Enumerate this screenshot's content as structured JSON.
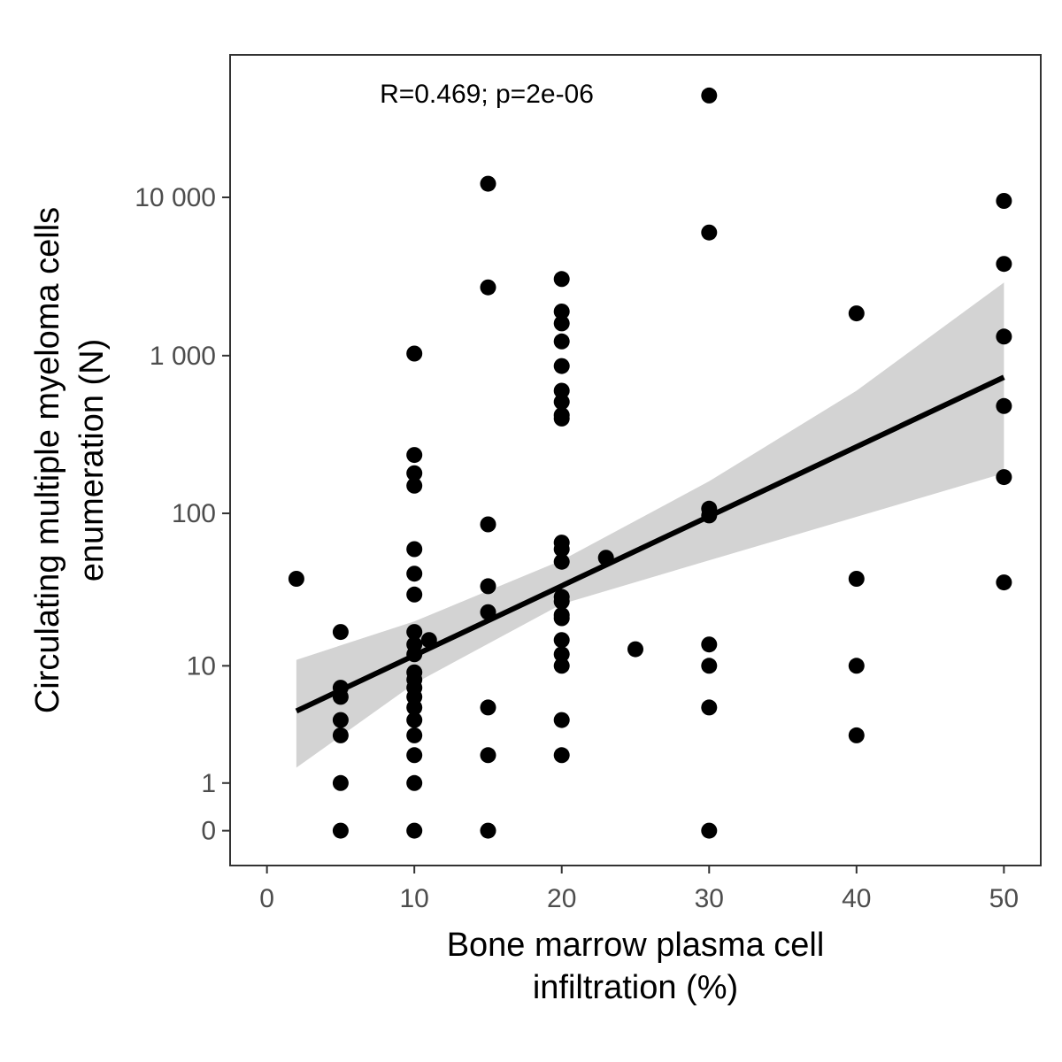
{
  "chart_data": {
    "type": "scatter",
    "title": "",
    "xlabel_lines": [
      "Bone marrow plasma cell",
      "infiltration (%)"
    ],
    "ylabel_lines": [
      "Circulating multiple myeloma cells",
      "enumeration (N)"
    ],
    "annotation": "R=0.469; p=2e-06",
    "x_scale": "linear",
    "y_scale": "pseudo-log (log10(N+1))",
    "xlim": [
      -2.5,
      52.5
    ],
    "ylim_transformed": [
      -0.22,
      4.9
    ],
    "x_ticks": [
      {
        "value": 0,
        "label": "0"
      },
      {
        "value": 10,
        "label": "10"
      },
      {
        "value": 20,
        "label": "20"
      },
      {
        "value": 30,
        "label": "30"
      },
      {
        "value": 40,
        "label": "40"
      },
      {
        "value": 50,
        "label": "50"
      }
    ],
    "y_ticks": [
      {
        "value": 0,
        "label": "0"
      },
      {
        "value": 1,
        "label": "1"
      },
      {
        "value": 10,
        "label": "10"
      },
      {
        "value": 100,
        "label": "100"
      },
      {
        "value": 1000,
        "label": "1 000"
      },
      {
        "value": 10000,
        "label": "10 000"
      }
    ],
    "points": [
      {
        "x": 2,
        "y": 38
      },
      {
        "x": 5,
        "y": 17
      },
      {
        "x": 5,
        "y": 7
      },
      {
        "x": 5,
        "y": 6
      },
      {
        "x": 5,
        "y": 4
      },
      {
        "x": 5,
        "y": 3
      },
      {
        "x": 5,
        "y": 1
      },
      {
        "x": 5,
        "y": 0
      },
      {
        "x": 10,
        "y": 1030
      },
      {
        "x": 10,
        "y": 235
      },
      {
        "x": 10,
        "y": 180
      },
      {
        "x": 10,
        "y": 150
      },
      {
        "x": 10,
        "y": 59
      },
      {
        "x": 10,
        "y": 41
      },
      {
        "x": 10,
        "y": 30
      },
      {
        "x": 10,
        "y": 17
      },
      {
        "x": 10,
        "y": 14
      },
      {
        "x": 10,
        "y": 12
      },
      {
        "x": 10,
        "y": 9
      },
      {
        "x": 10,
        "y": 8
      },
      {
        "x": 10,
        "y": 7
      },
      {
        "x": 10,
        "y": 6
      },
      {
        "x": 10,
        "y": 5
      },
      {
        "x": 10,
        "y": 4
      },
      {
        "x": 10,
        "y": 3
      },
      {
        "x": 10,
        "y": 2
      },
      {
        "x": 10,
        "y": 1
      },
      {
        "x": 10,
        "y": 0
      },
      {
        "x": 11,
        "y": 15
      },
      {
        "x": 15,
        "y": 12200
      },
      {
        "x": 15,
        "y": 2700
      },
      {
        "x": 15,
        "y": 85
      },
      {
        "x": 15,
        "y": 34
      },
      {
        "x": 15,
        "y": 23
      },
      {
        "x": 15,
        "y": 5
      },
      {
        "x": 15,
        "y": 2
      },
      {
        "x": 15,
        "y": 0
      },
      {
        "x": 20,
        "y": 3050
      },
      {
        "x": 20,
        "y": 1900
      },
      {
        "x": 20,
        "y": 1600
      },
      {
        "x": 20,
        "y": 1230
      },
      {
        "x": 20,
        "y": 860
      },
      {
        "x": 20,
        "y": 600
      },
      {
        "x": 20,
        "y": 510
      },
      {
        "x": 20,
        "y": 420
      },
      {
        "x": 20,
        "y": 400
      },
      {
        "x": 20,
        "y": 65
      },
      {
        "x": 20,
        "y": 59
      },
      {
        "x": 20,
        "y": 49
      },
      {
        "x": 20,
        "y": 29
      },
      {
        "x": 20,
        "y": 27
      },
      {
        "x": 20,
        "y": 22
      },
      {
        "x": 20,
        "y": 21
      },
      {
        "x": 20,
        "y": 15
      },
      {
        "x": 20,
        "y": 12
      },
      {
        "x": 20,
        "y": 10
      },
      {
        "x": 20,
        "y": 4
      },
      {
        "x": 20,
        "y": 2
      },
      {
        "x": 23,
        "y": 52
      },
      {
        "x": 25,
        "y": 13
      },
      {
        "x": 30,
        "y": 44000
      },
      {
        "x": 30,
        "y": 6000
      },
      {
        "x": 30,
        "y": 107
      },
      {
        "x": 30,
        "y": 97
      },
      {
        "x": 30,
        "y": 14
      },
      {
        "x": 30,
        "y": 10
      },
      {
        "x": 30,
        "y": 5
      },
      {
        "x": 30,
        "y": 0
      },
      {
        "x": 40,
        "y": 1850
      },
      {
        "x": 40,
        "y": 38
      },
      {
        "x": 40,
        "y": 10
      },
      {
        "x": 40,
        "y": 3
      },
      {
        "x": 50,
        "y": 9500
      },
      {
        "x": 50,
        "y": 3800
      },
      {
        "x": 50,
        "y": 1320
      },
      {
        "x": 50,
        "y": 480
      },
      {
        "x": 50,
        "y": 170
      },
      {
        "x": 50,
        "y": 36
      }
    ],
    "trend_line": {
      "x": [
        2,
        50
      ],
      "y": [
        4.7,
        730
      ]
    },
    "confidence_band": {
      "x": [
        2,
        10,
        20,
        30,
        40,
        50
      ],
      "lower": [
        1.5,
        7.5,
        26,
        50,
        95,
        180
      ],
      "upper": [
        11,
        20,
        50,
        160,
        600,
        2900
      ]
    },
    "colors": {
      "points": "#000000",
      "trend": "#000000",
      "band": "#d3d3d3",
      "tick_labels": "#4d4d4d",
      "panel_border": "#333333"
    }
  }
}
